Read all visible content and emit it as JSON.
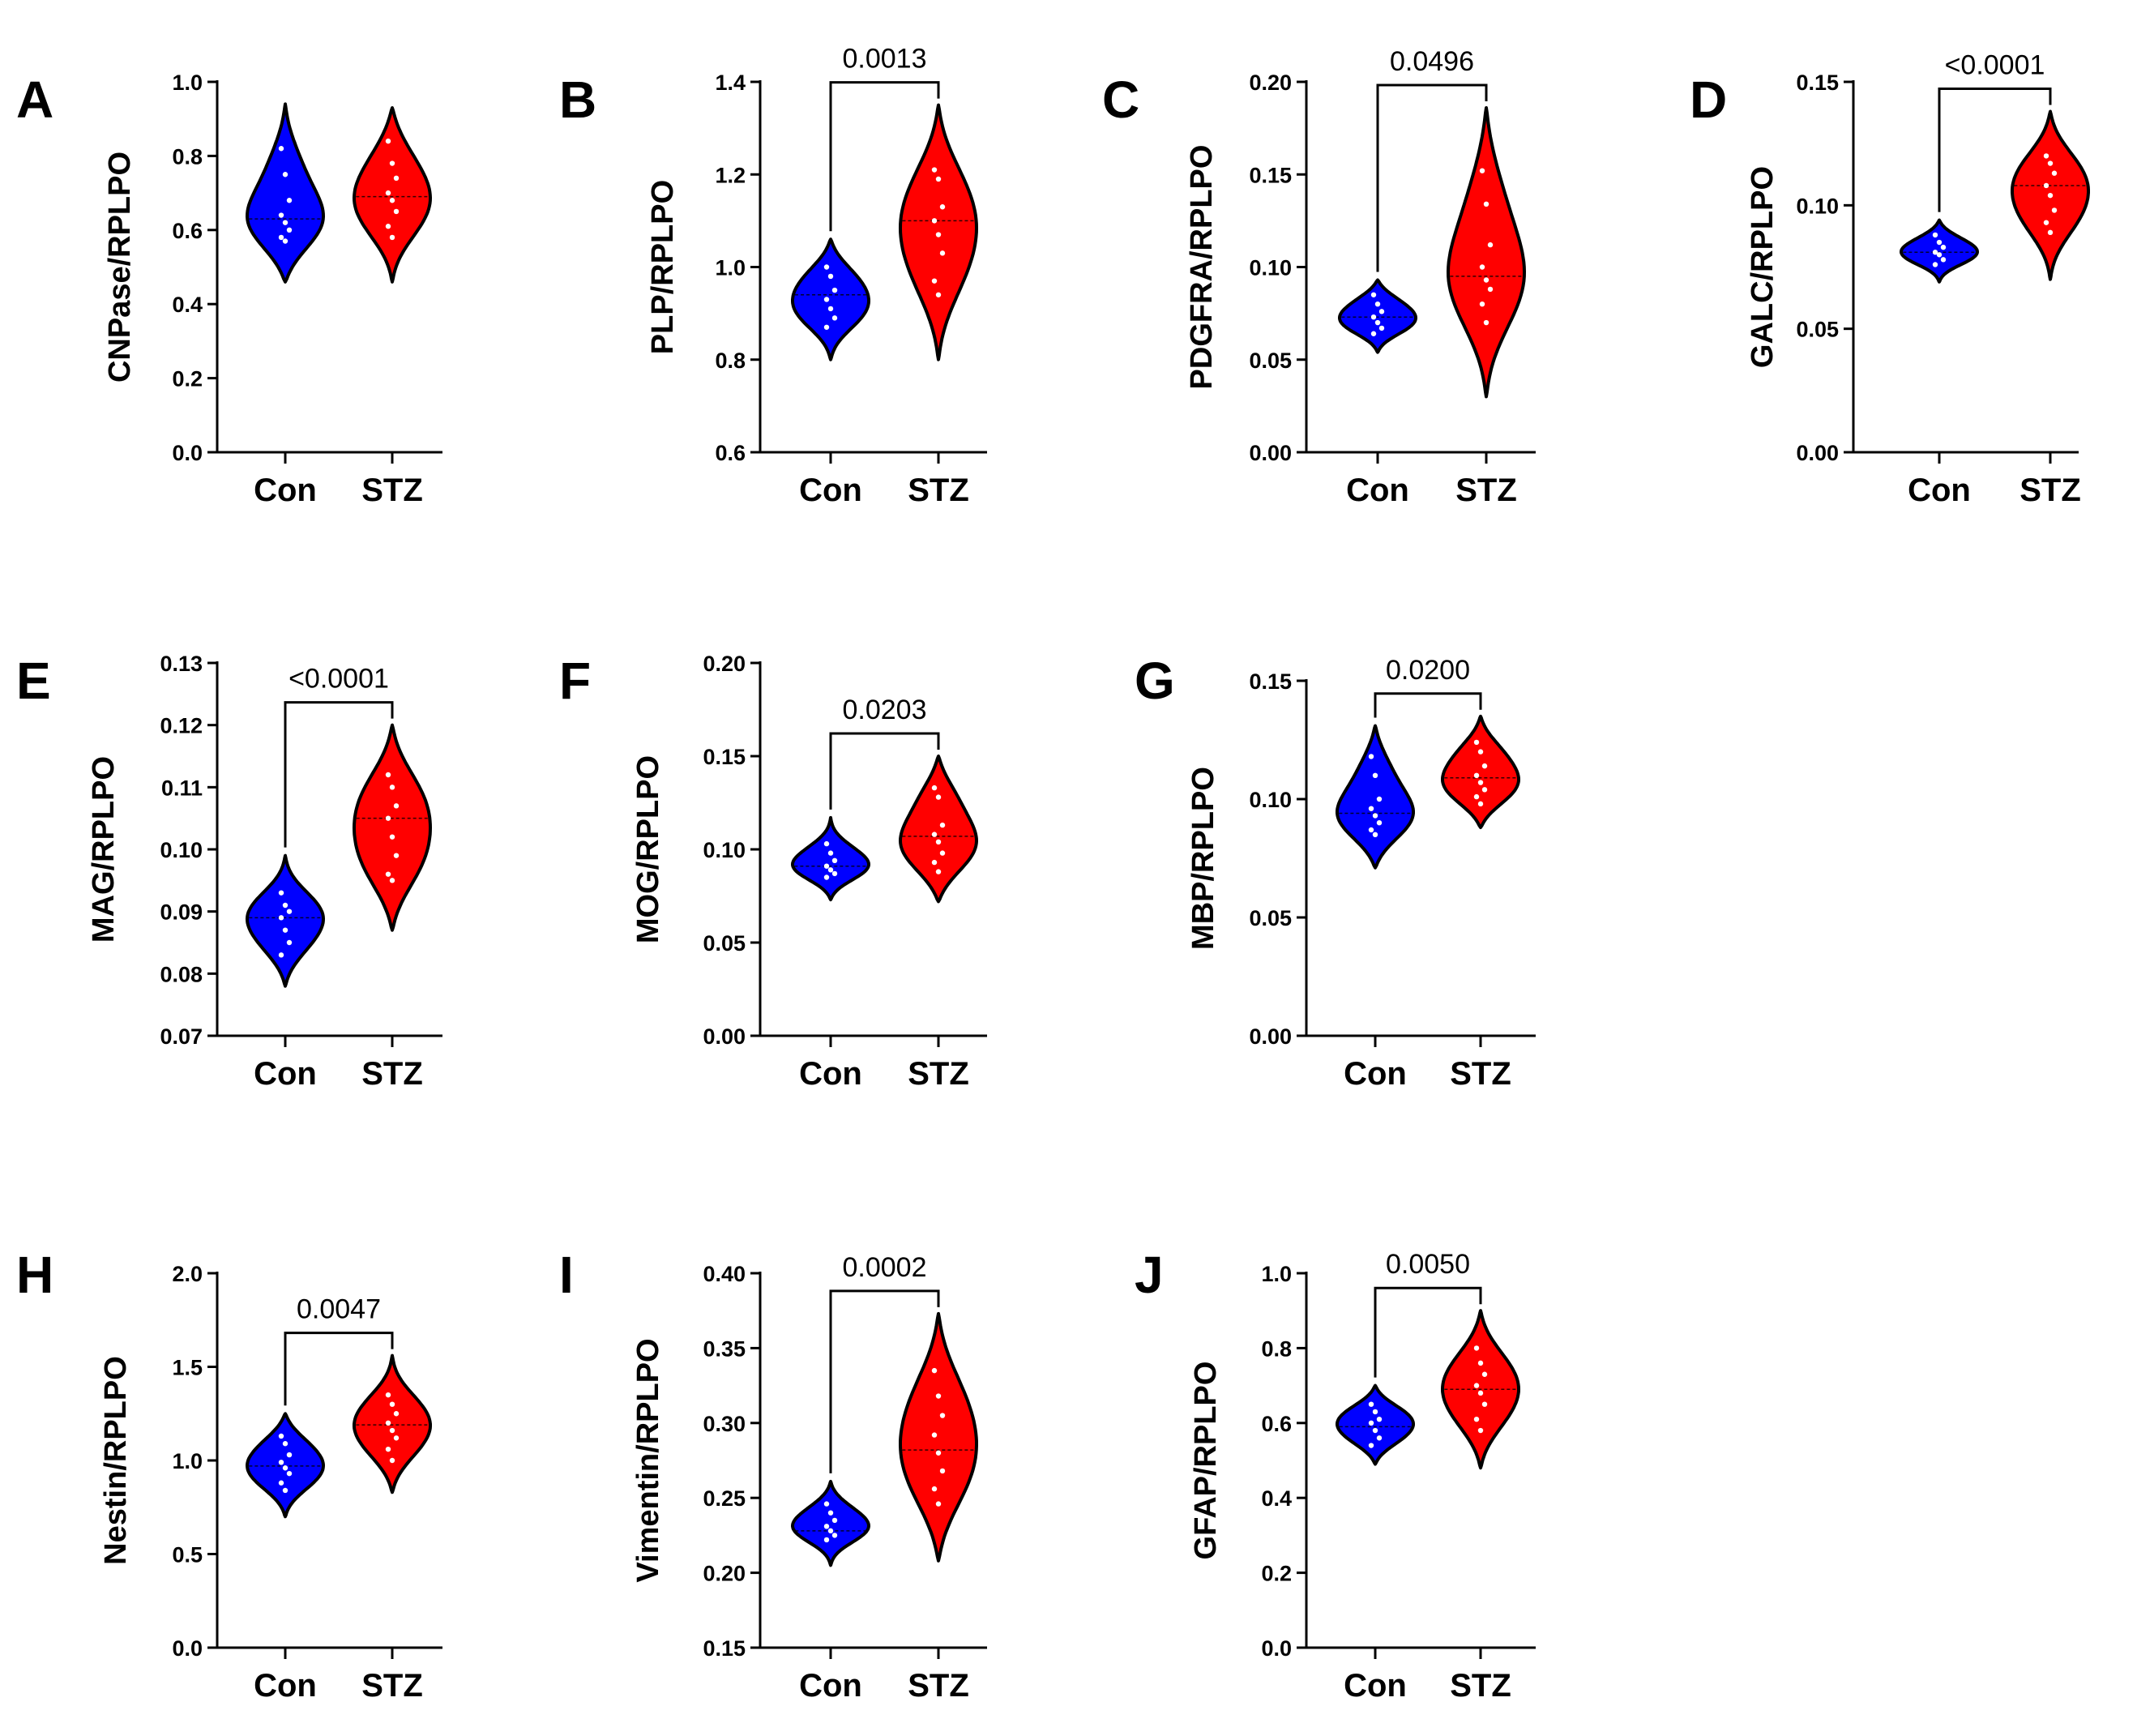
{
  "colors": {
    "con": "#0000ff",
    "stz": "#ff0000",
    "outline": "#000000",
    "points": "#ffffff"
  },
  "chart_data": [
    {
      "panel": "A",
      "type": "violin",
      "ylabel": "CNPase/RPLPO",
      "ylim": [
        0.0,
        1.0
      ],
      "yticks": [
        0.0,
        0.2,
        0.4,
        0.6,
        0.8,
        1.0
      ],
      "tick_labels": [
        "0.0",
        "0.2",
        "0.4",
        "0.6",
        "0.8",
        "1.0"
      ],
      "categories": [
        "Con",
        "STZ"
      ],
      "pvalue": null,
      "series": [
        {
          "name": "Con",
          "min": 0.46,
          "max": 0.94,
          "median": 0.63,
          "points": [
            0.82,
            0.75,
            0.68,
            0.64,
            0.62,
            0.6,
            0.58,
            0.57
          ]
        },
        {
          "name": "STZ",
          "min": 0.46,
          "max": 0.93,
          "median": 0.69,
          "points": [
            0.84,
            0.78,
            0.74,
            0.7,
            0.68,
            0.65,
            0.61,
            0.58
          ]
        }
      ]
    },
    {
      "panel": "B",
      "type": "violin",
      "ylabel": "PLP/RPLPO",
      "ylim": [
        0.6,
        1.4
      ],
      "yticks": [
        0.6,
        0.8,
        1.0,
        1.2,
        1.4
      ],
      "tick_labels": [
        "0.6",
        "0.8",
        "1.0",
        "1.2",
        "1.4"
      ],
      "categories": [
        "Con",
        "STZ"
      ],
      "pvalue": "0.0013",
      "series": [
        {
          "name": "Con",
          "min": 0.8,
          "max": 1.06,
          "median": 0.94,
          "points": [
            1.0,
            0.98,
            0.95,
            0.93,
            0.91,
            0.89,
            0.87
          ]
        },
        {
          "name": "STZ",
          "min": 0.8,
          "max": 1.35,
          "median": 1.1,
          "points": [
            1.21,
            1.19,
            1.13,
            1.1,
            1.07,
            1.03,
            0.97,
            0.94
          ]
        }
      ]
    },
    {
      "panel": "C",
      "type": "violin",
      "ylabel": "PDGFRA/RPLPO",
      "ylim": [
        0.0,
        0.2
      ],
      "yticks": [
        0.0,
        0.05,
        0.1,
        0.15,
        0.2
      ],
      "tick_labels": [
        "0.00",
        "0.05",
        "0.10",
        "0.15",
        "0.20"
      ],
      "categories": [
        "Con",
        "STZ"
      ],
      "pvalue": "0.0496",
      "series": [
        {
          "name": "Con",
          "min": 0.054,
          "max": 0.093,
          "median": 0.073,
          "points": [
            0.085,
            0.08,
            0.076,
            0.073,
            0.07,
            0.067,
            0.064
          ]
        },
        {
          "name": "STZ",
          "min": 0.03,
          "max": 0.186,
          "median": 0.095,
          "points": [
            0.152,
            0.134,
            0.112,
            0.1,
            0.093,
            0.088,
            0.08,
            0.07
          ]
        }
      ]
    },
    {
      "panel": "D",
      "type": "violin",
      "ylabel": "GALC/RPLPO",
      "ylim": [
        0.0,
        0.15
      ],
      "yticks": [
        0.0,
        0.05,
        0.1,
        0.15
      ],
      "tick_labels": [
        "0.00",
        "0.05",
        "0.10",
        "0.15"
      ],
      "categories": [
        "Con",
        "STZ"
      ],
      "pvalue": "<0.0001",
      "series": [
        {
          "name": "Con",
          "min": 0.069,
          "max": 0.094,
          "median": 0.081,
          "points": [
            0.088,
            0.085,
            0.083,
            0.081,
            0.08,
            0.078,
            0.076
          ]
        },
        {
          "name": "STZ",
          "min": 0.07,
          "max": 0.138,
          "median": 0.108,
          "points": [
            0.12,
            0.117,
            0.113,
            0.108,
            0.104,
            0.098,
            0.093,
            0.089
          ]
        }
      ]
    },
    {
      "panel": "E",
      "type": "violin",
      "ylabel": "MAG/RPLPO",
      "ylim": [
        0.07,
        0.13
      ],
      "yticks": [
        0.07,
        0.08,
        0.09,
        0.1,
        0.11,
        0.12,
        0.13
      ],
      "tick_labels": [
        "0.07",
        "0.08",
        "0.09",
        "0.10",
        "0.11",
        "0.12",
        "0.13"
      ],
      "categories": [
        "Con",
        "STZ"
      ],
      "pvalue": "<0.0001",
      "series": [
        {
          "name": "Con",
          "min": 0.078,
          "max": 0.099,
          "median": 0.089,
          "points": [
            0.093,
            0.091,
            0.09,
            0.089,
            0.087,
            0.085,
            0.083
          ]
        },
        {
          "name": "STZ",
          "min": 0.087,
          "max": 0.12,
          "median": 0.105,
          "points": [
            0.112,
            0.11,
            0.107,
            0.105,
            0.102,
            0.099,
            0.096,
            0.095
          ]
        }
      ]
    },
    {
      "panel": "F",
      "type": "violin",
      "ylabel": "MOG/RPLPO",
      "ylim": [
        0.0,
        0.2
      ],
      "yticks": [
        0.0,
        0.05,
        0.1,
        0.15,
        0.2
      ],
      "tick_labels": [
        "0.00",
        "0.05",
        "0.10",
        "0.15",
        "0.20"
      ],
      "categories": [
        "Con",
        "STZ"
      ],
      "pvalue": "0.0203",
      "series": [
        {
          "name": "Con",
          "min": 0.073,
          "max": 0.117,
          "median": 0.091,
          "points": [
            0.103,
            0.098,
            0.094,
            0.091,
            0.089,
            0.087,
            0.085
          ]
        },
        {
          "name": "STZ",
          "min": 0.072,
          "max": 0.15,
          "median": 0.107,
          "points": [
            0.133,
            0.128,
            0.113,
            0.108,
            0.104,
            0.098,
            0.093,
            0.088
          ]
        }
      ]
    },
    {
      "panel": "G",
      "type": "violin",
      "ylabel": "MBP/RPLPO",
      "ylim": [
        0.0,
        0.15
      ],
      "yticks": [
        0.0,
        0.05,
        0.1,
        0.15
      ],
      "tick_labels": [
        "0.00",
        "0.05",
        "0.10",
        "0.15"
      ],
      "categories": [
        "Con",
        "STZ"
      ],
      "pvalue": "0.0200",
      "series": [
        {
          "name": "Con",
          "min": 0.071,
          "max": 0.131,
          "median": 0.094,
          "points": [
            0.118,
            0.11,
            0.1,
            0.096,
            0.093,
            0.09,
            0.087,
            0.085
          ]
        },
        {
          "name": "STZ",
          "min": 0.088,
          "max": 0.135,
          "median": 0.109,
          "points": [
            0.124,
            0.12,
            0.114,
            0.11,
            0.107,
            0.104,
            0.101,
            0.098
          ]
        }
      ]
    },
    {
      "panel": "H",
      "type": "violin",
      "ylabel": "Nestin/RPLPO",
      "ylim": [
        0.0,
        2.0
      ],
      "yticks": [
        0.0,
        0.5,
        1.0,
        1.5,
        2.0
      ],
      "tick_labels": [
        "0.0",
        "0.5",
        "1.0",
        "1.5",
        "2.0"
      ],
      "categories": [
        "Con",
        "STZ"
      ],
      "pvalue": "0.0047",
      "series": [
        {
          "name": "Con",
          "min": 0.7,
          "max": 1.25,
          "median": 0.97,
          "points": [
            1.13,
            1.09,
            1.03,
            0.99,
            0.96,
            0.93,
            0.88,
            0.84
          ]
        },
        {
          "name": "STZ",
          "min": 0.83,
          "max": 1.56,
          "median": 1.19,
          "points": [
            1.35,
            1.3,
            1.25,
            1.2,
            1.16,
            1.12,
            1.06,
            1.0
          ]
        }
      ]
    },
    {
      "panel": "I",
      "type": "violin",
      "ylabel": "Vimentin/RPLPO",
      "ylim": [
        0.15,
        0.4
      ],
      "yticks": [
        0.15,
        0.2,
        0.25,
        0.3,
        0.35,
        0.4
      ],
      "tick_labels": [
        "0.15",
        "0.20",
        "0.25",
        "0.30",
        "0.35",
        "0.40"
      ],
      "categories": [
        "Con",
        "STZ"
      ],
      "pvalue": "0.0002",
      "series": [
        {
          "name": "Con",
          "min": 0.205,
          "max": 0.261,
          "median": 0.228,
          "points": [
            0.246,
            0.24,
            0.235,
            0.231,
            0.228,
            0.225,
            0.222
          ]
        },
        {
          "name": "STZ",
          "min": 0.208,
          "max": 0.373,
          "median": 0.282,
          "points": [
            0.335,
            0.318,
            0.305,
            0.292,
            0.28,
            0.268,
            0.256,
            0.246
          ]
        }
      ]
    },
    {
      "panel": "J",
      "type": "violin",
      "ylabel": "GFAP/RPLPO",
      "ylim": [
        0.0,
        1.0
      ],
      "yticks": [
        0.0,
        0.2,
        0.4,
        0.6,
        0.8,
        1.0
      ],
      "tick_labels": [
        "0.0",
        "0.2",
        "0.4",
        "0.6",
        "0.8",
        "1.0"
      ],
      "categories": [
        "Con",
        "STZ"
      ],
      "pvalue": "0.0050",
      "series": [
        {
          "name": "Con",
          "min": 0.49,
          "max": 0.7,
          "median": 0.59,
          "points": [
            0.65,
            0.63,
            0.61,
            0.6,
            0.58,
            0.56,
            0.54
          ]
        },
        {
          "name": "STZ",
          "min": 0.48,
          "max": 0.9,
          "median": 0.69,
          "points": [
            0.8,
            0.76,
            0.73,
            0.7,
            0.68,
            0.65,
            0.61,
            0.58
          ]
        }
      ]
    }
  ]
}
